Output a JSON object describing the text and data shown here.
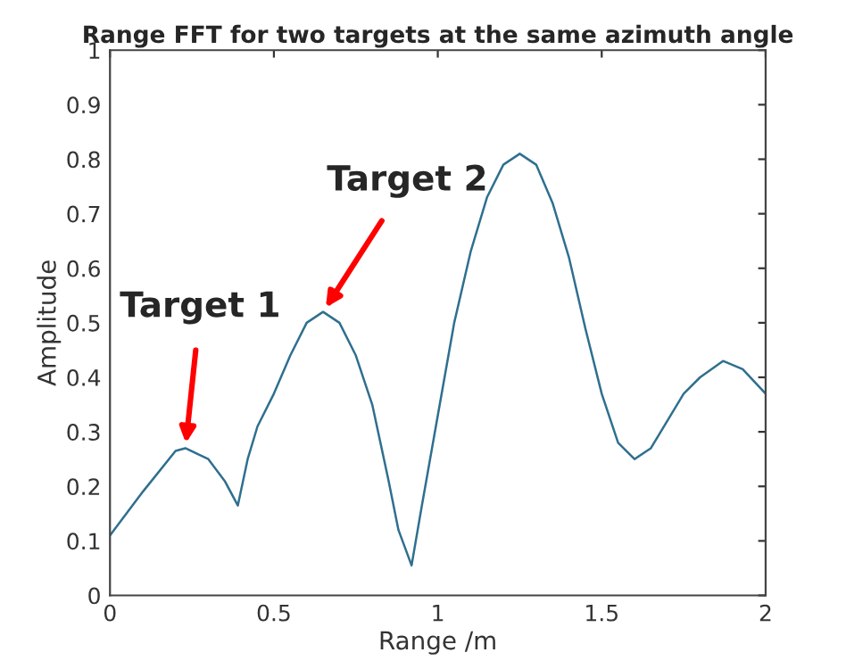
{
  "chart_data": {
    "type": "line",
    "title": "Range FFT for two targets at the same azimuth angle",
    "xlabel": "Range /m",
    "ylabel": "Amplitude",
    "x": [
      0,
      0.1,
      0.2,
      0.23,
      0.3,
      0.35,
      0.39,
      0.42,
      0.45,
      0.5,
      0.55,
      0.6,
      0.65,
      0.7,
      0.75,
      0.8,
      0.85,
      0.88,
      0.92,
      0.95,
      1.0,
      1.05,
      1.1,
      1.15,
      1.2,
      1.25,
      1.3,
      1.35,
      1.4,
      1.45,
      1.5,
      1.55,
      1.6,
      1.65,
      1.7,
      1.75,
      1.8,
      1.87,
      1.93,
      2.0
    ],
    "series": [
      {
        "color": "#2f6f8f",
        "values": [
          0.11,
          0.19,
          0.265,
          0.27,
          0.25,
          0.21,
          0.165,
          0.25,
          0.31,
          0.37,
          0.44,
          0.5,
          0.52,
          0.5,
          0.44,
          0.35,
          0.21,
          0.12,
          0.055,
          0.16,
          0.33,
          0.5,
          0.63,
          0.73,
          0.79,
          0.81,
          0.79,
          0.72,
          0.62,
          0.49,
          0.37,
          0.28,
          0.25,
          0.27,
          0.32,
          0.37,
          0.4,
          0.43,
          0.415,
          0.37
        ]
      }
    ],
    "annotations": [
      {
        "text": "Target 1",
        "x": 0.23,
        "y": 0.27
      },
      {
        "text": "Target 2",
        "x": 0.65,
        "y": 0.52
      }
    ],
    "xlim": [
      0,
      2
    ],
    "ylim": [
      0,
      1
    ],
    "xticks": [
      0,
      0.5,
      1,
      1.5,
      2
    ],
    "yticks": [
      0,
      0.1,
      0.2,
      0.3,
      0.4,
      0.5,
      0.6,
      0.7,
      0.8,
      0.9,
      1
    ],
    "grid": false,
    "legend": false,
    "marker": "none",
    "line_style": "solid"
  }
}
